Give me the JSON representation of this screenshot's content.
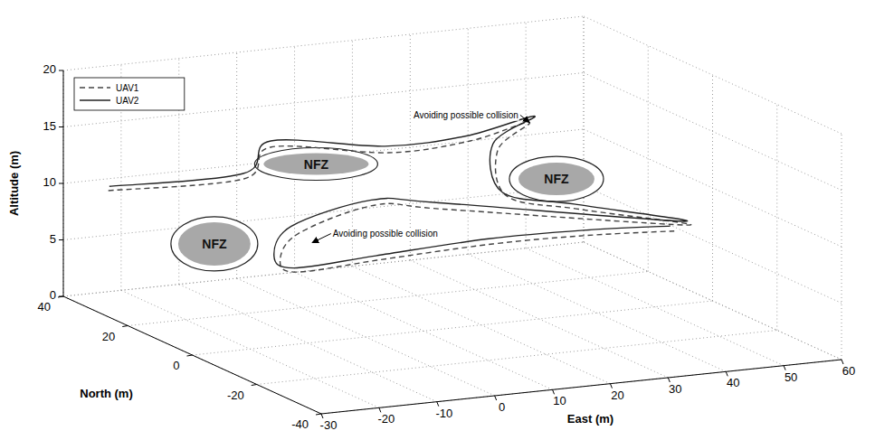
{
  "chart_data": {
    "type": "line3d",
    "x_label": "East (m)",
    "y_label": "North (m)",
    "z_label": "Altitude (m)",
    "xlim": [
      -30,
      60
    ],
    "ylim": [
      -40,
      40
    ],
    "zlim": [
      0,
      20
    ],
    "xticks": [
      -30,
      -20,
      -10,
      0,
      10,
      20,
      30,
      40,
      50,
      60
    ],
    "yticks": [
      -40,
      -20,
      0,
      20,
      40
    ],
    "zticks": [
      0,
      5,
      10,
      15,
      20
    ],
    "grid": true,
    "legend": "upper left",
    "series": [
      {
        "name": "UAV1",
        "color": "#444444",
        "line_style": "dashed",
        "x": [
          -25.9,
          -3.2,
          1.8,
          18.3,
          33.4,
          37,
          34.5,
          35.5,
          45.1,
          59,
          26,
          14.2,
          5,
          0.8,
          3.6,
          15.4,
          32.7,
          45.2,
          57
        ],
        "y": [
          33.4,
          32.1,
          32.5,
          25.7,
          27.5,
          15.6,
          20.9,
          19.9,
          14.7,
          5.9,
          22.6,
          22.5,
          29.9,
          28,
          27.4,
          23.2,
          19.2,
          12.2,
          6.5
        ],
        "z": [
          10,
          10,
          12.5,
          12,
          12,
          15,
          12,
          8,
          7,
          6,
          7,
          8,
          5,
          3,
          2,
          3,
          4,
          5,
          5.5
        ]
      },
      {
        "name": "UAV2",
        "color": "#222222",
        "line_style": "solid",
        "x": [
          -25.5,
          -3,
          2.2,
          18,
          33,
          37.6,
          34,
          35,
          44.6,
          58.6,
          25.6,
          13.8,
          4.2,
          0.2,
          3.2,
          15,
          32.3,
          44.8,
          56.6
        ],
        "y": [
          33.8,
          32.6,
          33.4,
          26.4,
          28,
          15,
          21.5,
          20.4,
          15.3,
          6.3,
          23.2,
          23,
          30.6,
          28.8,
          28,
          23.8,
          19.8,
          12.8,
          7
        ],
        "z": [
          10.3,
          10.4,
          12.9,
          12.5,
          12.4,
          15.6,
          12.5,
          8.3,
          7.4,
          6.3,
          7.5,
          8.4,
          5.6,
          3.4,
          2.3,
          3.3,
          4.4,
          5.4,
          5.9
        ]
      }
    ],
    "zones": [
      {
        "label": "NFZ",
        "x": 8.1,
        "y": 29.9,
        "z": 11
      },
      {
        "label": "NFZ",
        "x": 40.8,
        "y": 14,
        "z": 10
      },
      {
        "label": "NFZ",
        "x": -6.5,
        "y": 35.3,
        "z": 4
      }
    ],
    "annotations": [
      {
        "text": "Avoiding possible collision",
        "x": 37,
        "y": 15.6,
        "z": 15,
        "text_x": 15,
        "text_y": 12.1,
        "text_z": 17
      },
      {
        "text": "Avoiding possible collision",
        "x": 4.2,
        "y": 24.1,
        "z": 5,
        "text_x": 5.4,
        "text_y": 19.9,
        "text_z": 6
      }
    ]
  }
}
